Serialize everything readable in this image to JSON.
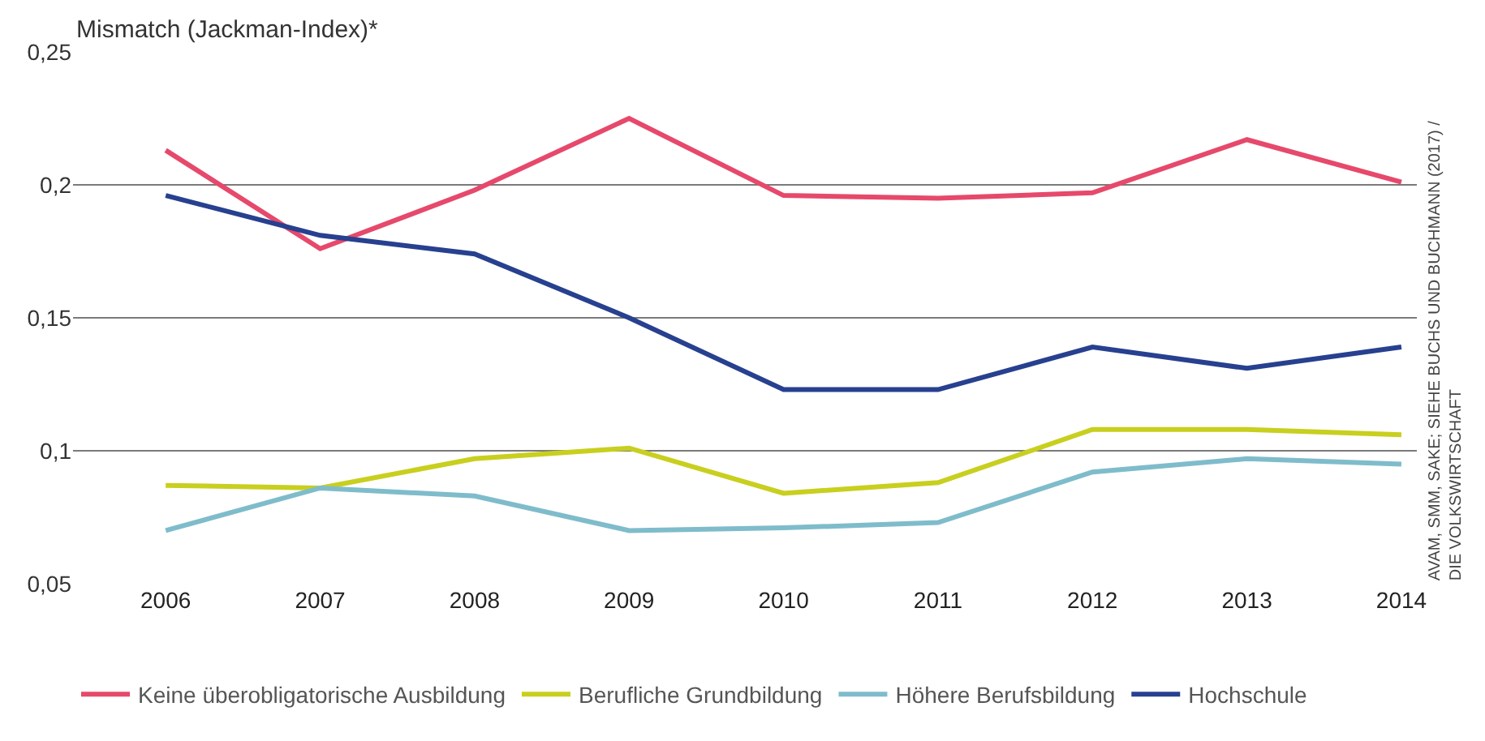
{
  "chart_data": {
    "type": "line",
    "title": "Mismatch (Jackman-Index)*",
    "categories": [
      "2006",
      "2007",
      "2008",
      "2009",
      "2010",
      "2011",
      "2012",
      "2013",
      "2014"
    ],
    "series": [
      {
        "name": "Keine überobligatorische Ausbildung",
        "color": "#e6496b",
        "values": [
          0.213,
          0.176,
          0.198,
          0.225,
          0.196,
          0.195,
          0.197,
          0.217,
          0.201
        ]
      },
      {
        "name": "Berufliche Grundbildung",
        "color": "#c8cf1e",
        "values": [
          0.087,
          0.086,
          0.097,
          0.101,
          0.084,
          0.088,
          0.108,
          0.108,
          0.106
        ]
      },
      {
        "name": "Höhere Berufsbildung",
        "color": "#7fbccb",
        "values": [
          0.07,
          0.086,
          0.083,
          0.07,
          0.071,
          0.073,
          0.092,
          0.097,
          0.095
        ]
      },
      {
        "name": "Hochschule",
        "color": "#27408f",
        "values": [
          0.196,
          0.181,
          0.174,
          0.15,
          0.123,
          0.123,
          0.139,
          0.131,
          0.139
        ]
      }
    ],
    "ylim": [
      0.05,
      0.25
    ],
    "yticks": [
      {
        "value": 0.05,
        "label": "0,05"
      },
      {
        "value": 0.1,
        "label": "0,1"
      },
      {
        "value": 0.15,
        "label": "0,15"
      },
      {
        "value": 0.2,
        "label": "0,2"
      },
      {
        "value": 0.25,
        "label": "0,25"
      }
    ],
    "grid": "y",
    "legend": "bottom",
    "marker": "none",
    "line_style": "solid",
    "annotations": [
      "AVAM, SMM, SAKE; SIEHE BUCHS UND BUCHMANN (2017) /\nDIE VOLKSWIRTSCHAFT"
    ]
  }
}
